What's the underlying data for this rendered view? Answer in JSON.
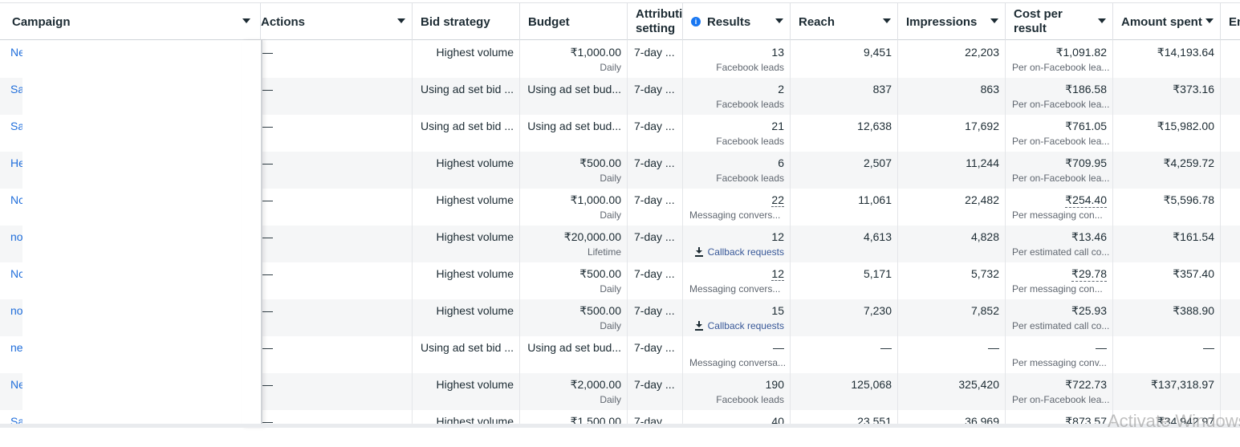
{
  "header": {
    "campaign": "Campaign",
    "actions": "Actions",
    "bid_strategy": "Bid strategy",
    "budget": "Budget",
    "attribution": "Attribution setting",
    "results": "Results",
    "reach": "Reach",
    "impressions": "Impressions",
    "cost_per_result": "Cost per result",
    "amount_spent": "Amount spent",
    "ends": "Ends"
  },
  "rows": [
    {
      "campaign": "Ne",
      "actions": "—",
      "bid": "Highest volume",
      "budget": "₹1,000.00",
      "budget_sub": "Daily",
      "attr": "7-day ...",
      "results": "13",
      "results_sub": "Facebook leads",
      "results_type": "plain",
      "results_dotted": false,
      "reach": "9,451",
      "impressions": "22,203",
      "cpr": "₹1,091.82",
      "cpr_sub": "Per on-Facebook lea...",
      "cpr_dotted": false,
      "spent": "₹14,193.64"
    },
    {
      "campaign": "Sa",
      "actions": "—",
      "bid": "Using ad set bid ...",
      "budget": "Using ad set bud...",
      "budget_sub": "",
      "attr": "7-day ...",
      "results": "2",
      "results_sub": "Facebook leads",
      "results_type": "plain",
      "results_dotted": false,
      "reach": "837",
      "impressions": "863",
      "cpr": "₹186.58",
      "cpr_sub": "Per on-Facebook lea...",
      "cpr_dotted": false,
      "spent": "₹373.16"
    },
    {
      "campaign": "Sa",
      "actions": "—",
      "bid": "Using ad set bid ...",
      "budget": "Using ad set bud...",
      "budget_sub": "",
      "attr": "7-day ...",
      "results": "21",
      "results_sub": "Facebook leads",
      "results_type": "plain",
      "results_dotted": false,
      "reach": "12,638",
      "impressions": "17,692",
      "cpr": "₹761.05",
      "cpr_sub": "Per on-Facebook lea...",
      "cpr_dotted": false,
      "spent": "₹15,982.00"
    },
    {
      "campaign": "He",
      "actions": "—",
      "bid": "Highest volume",
      "budget": "₹500.00",
      "budget_sub": "Daily",
      "attr": "7-day ...",
      "results": "6",
      "results_sub": "Facebook leads",
      "results_type": "plain",
      "results_dotted": false,
      "reach": "2,507",
      "impressions": "11,244",
      "cpr": "₹709.95",
      "cpr_sub": "Per on-Facebook lea...",
      "cpr_dotted": false,
      "spent": "₹4,259.72"
    },
    {
      "campaign": "Nc",
      "actions": "—",
      "bid": "Highest volume",
      "budget": "₹1,000.00",
      "budget_sub": "Daily",
      "attr": "7-day ...",
      "results": "22",
      "results_sub": "Messaging convers...",
      "results_type": "left",
      "results_dotted": true,
      "reach": "11,061",
      "impressions": "22,482",
      "cpr": "₹254.40",
      "cpr_sub": "Per messaging con...",
      "cpr_dotted": true,
      "spent": "₹5,596.78"
    },
    {
      "campaign": "no",
      "actions": "—",
      "bid": "Highest volume",
      "budget": "₹20,000.00",
      "budget_sub": "Lifetime",
      "attr": "7-day ...",
      "results": "12",
      "results_sub": "Callback requests",
      "results_type": "callback",
      "results_dotted": false,
      "reach": "4,613",
      "impressions": "4,828",
      "cpr": "₹13.46",
      "cpr_sub": "Per estimated call co...",
      "cpr_dotted": false,
      "spent": "₹161.54"
    },
    {
      "campaign": "Nc",
      "actions": "—",
      "bid": "Highest volume",
      "budget": "₹500.00",
      "budget_sub": "Daily",
      "attr": "7-day ...",
      "results": "12",
      "results_sub": "Messaging convers...",
      "results_type": "left",
      "results_dotted": true,
      "reach": "5,171",
      "impressions": "5,732",
      "cpr": "₹29.78",
      "cpr_sub": "Per messaging con...",
      "cpr_dotted": true,
      "spent": "₹357.40"
    },
    {
      "campaign": "no",
      "actions": "—",
      "bid": "Highest volume",
      "budget": "₹500.00",
      "budget_sub": "Daily",
      "attr": "7-day ...",
      "results": "15",
      "results_sub": "Callback requests",
      "results_type": "callback",
      "results_dotted": false,
      "reach": "7,230",
      "impressions": "7,852",
      "cpr": "₹25.93",
      "cpr_sub": "Per estimated call co...",
      "cpr_dotted": false,
      "spent": "₹388.90"
    },
    {
      "campaign": "ne",
      "actions": "—",
      "bid": "Using ad set bid ...",
      "budget": "Using ad set bud...",
      "budget_sub": "",
      "attr": "7-day ...",
      "results": "—",
      "results_sub": "Messaging conversa...",
      "results_type": "left",
      "results_dotted": false,
      "reach": "—",
      "impressions": "—",
      "cpr": "—",
      "cpr_sub": "Per messaging conv...",
      "cpr_dotted": false,
      "spent": "—"
    },
    {
      "campaign": "Ne",
      "actions": "—",
      "bid": "Highest volume",
      "budget": "₹2,000.00",
      "budget_sub": "Daily",
      "attr": "7-day ...",
      "results": "190",
      "results_sub": "Facebook leads",
      "results_type": "plain",
      "results_dotted": false,
      "reach": "125,068",
      "impressions": "325,420",
      "cpr": "₹722.73",
      "cpr_sub": "Per on-Facebook lea...",
      "cpr_dotted": false,
      "spent": "₹137,318.97"
    },
    {
      "campaign": "Sa",
      "actions": "—",
      "bid": "Highest volume",
      "budget": "₹1,500.00",
      "budget_sub": "",
      "attr": "7-day ...",
      "results": "40",
      "results_sub": "",
      "results_type": "plain",
      "results_dotted": false,
      "reach": "23,551",
      "impressions": "36,969",
      "cpr": "₹873.57",
      "cpr_sub": "",
      "cpr_dotted": false,
      "spent": "₹34,942.97"
    }
  ],
  "watermark": "Activate Windows"
}
